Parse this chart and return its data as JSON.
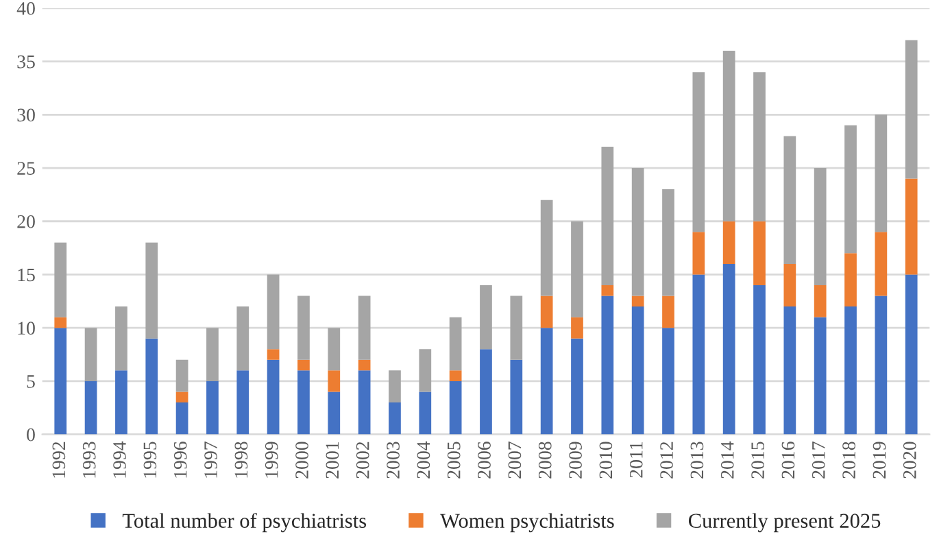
{
  "chart_data": {
    "type": "bar",
    "stacked": true,
    "categories": [
      "1992",
      "1993",
      "1994",
      "1995",
      "1996",
      "1997",
      "1998",
      "1999",
      "2000",
      "2001",
      "2002",
      "2003",
      "2004",
      "2005",
      "2006",
      "2007",
      "2008",
      "2009",
      "2010",
      "2011",
      "2012",
      "2013",
      "2014",
      "2015",
      "2016",
      "2017",
      "2018",
      "2019",
      "2020"
    ],
    "series": [
      {
        "name": "Total number of psychiatrists",
        "color": "#4472c4",
        "values": [
          10,
          5,
          6,
          9,
          3,
          5,
          6,
          7,
          6,
          4,
          6,
          3,
          4,
          5,
          8,
          7,
          10,
          9,
          13,
          12,
          10,
          15,
          16,
          14,
          12,
          11,
          12,
          13,
          15
        ]
      },
      {
        "name": "Women psychiatrists",
        "color": "#ed7d31",
        "values": [
          1,
          0,
          0,
          0,
          1,
          0,
          0,
          1,
          1,
          2,
          1,
          0,
          0,
          1,
          0,
          0,
          3,
          2,
          1,
          1,
          3,
          4,
          4,
          6,
          4,
          3,
          5,
          6,
          9
        ]
      },
      {
        "name": "Currently present 2025",
        "color": "#a5a5a5",
        "values": [
          7,
          5,
          6,
          9,
          3,
          5,
          6,
          7,
          6,
          4,
          6,
          3,
          4,
          5,
          6,
          6,
          9,
          9,
          13,
          12,
          10,
          15,
          16,
          14,
          12,
          11,
          12,
          11,
          13
        ]
      }
    ],
    "ylim": [
      0,
      40
    ],
    "yticks": [
      0,
      5,
      10,
      15,
      20,
      25,
      30,
      35,
      40
    ],
    "grid": "y",
    "legend": "bottom"
  }
}
